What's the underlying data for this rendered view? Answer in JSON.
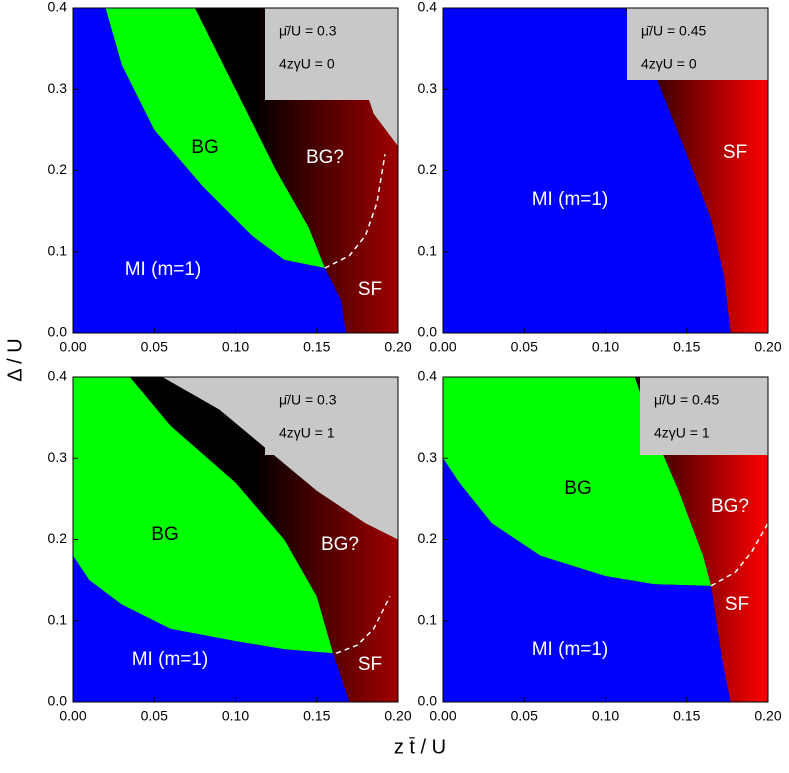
{
  "y_label": "Δ / U",
  "x_label": "z t̄ / U",
  "chart_data": [
    {
      "type": "phase",
      "legend_lines": [
        "μ̄/U = 0.3",
        "4zγU = 0"
      ],
      "labels": [
        "BG",
        "BG?",
        "MI (m=1)",
        "SF"
      ],
      "gradient": [
        "#000000",
        "#a00000"
      ],
      "regions": [
        {
          "color": "#c8c8c8",
          "x": [
            0.165,
            0.165,
            0.175,
            0.185,
            0.2,
            0.2
          ],
          "y": [
            0.4,
            0.37,
            0.33,
            0.27,
            0.23,
            0.4
          ]
        },
        {
          "color": "#00ff00",
          "x": [
            0.02,
            0.075,
            0.1,
            0.125,
            0.145,
            0.155,
            0.13,
            0.11,
            0.08,
            0.05,
            0.03
          ],
          "y": [
            0.4,
            0.4,
            0.3,
            0.2,
            0.13,
            0.08,
            0.09,
            0.12,
            0.18,
            0.25,
            0.33
          ]
        },
        {
          "color": "#0000ff",
          "x": [
            0,
            0,
            0.02,
            0.03,
            0.05,
            0.08,
            0.11,
            0.13,
            0.155,
            0.165,
            0.168
          ],
          "y": [
            0,
            0.4,
            0.4,
            0.33,
            0.25,
            0.18,
            0.12,
            0.09,
            0.08,
            0.04,
            0
          ]
        }
      ],
      "dashed": {
        "x": [
          0.155,
          0.17,
          0.18,
          0.187,
          0.192
        ],
        "y": [
          0.08,
          0.095,
          0.12,
          0.16,
          0.22
        ]
      },
      "xlim": [
        0,
        0.2
      ],
      "ylim": [
        0,
        0.4
      ],
      "xticks": [
        {
          "value": 0,
          "label": "0.00"
        },
        0.05,
        {
          "value": 0.1,
          "label": "0.10"
        },
        0.15,
        {
          "value": 0.2,
          "label": "0.20"
        }
      ],
      "yticks": [
        {
          "value": 0,
          "label": "0.0"
        },
        0.1,
        0.2,
        0.3,
        0.4
      ]
    },
    {
      "type": "phase",
      "legend_lines": [
        "μ̄/U = 0.45",
        "4zγU = 0"
      ],
      "labels": [
        "MI (m=1)",
        "SF"
      ],
      "gradient": [
        "#000000",
        "#ff0000"
      ],
      "regions": [
        {
          "color": "#0000ff",
          "x": [
            0,
            0,
            0.112,
            0.13,
            0.15,
            0.165,
            0.173,
            0.177
          ],
          "y": [
            0,
            0.4,
            0.4,
            0.32,
            0.22,
            0.14,
            0.07,
            0
          ]
        }
      ],
      "xlim": [
        0,
        0.2
      ],
      "ylim": [
        0,
        0.4
      ],
      "xticks": [
        {
          "value": 0,
          "label": "0.00"
        },
        0.05,
        {
          "value": 0.1,
          "label": "0.10"
        },
        0.15,
        {
          "value": 0.2,
          "label": "0.20"
        }
      ],
      "yticks": [
        {
          "value": 0,
          "label": "0.0"
        },
        0.1,
        0.2,
        0.3,
        0.4
      ]
    },
    {
      "type": "phase",
      "legend_lines": [
        "μ̄/U = 0.3",
        "4zγU = 1"
      ],
      "labels": [
        "BG",
        "BG?",
        "MI (m=1)",
        "SF"
      ],
      "gradient": [
        "#000000",
        "#a00000"
      ],
      "regions": [
        {
          "color": "#c8c8c8",
          "x": [
            0.055,
            0.09,
            0.12,
            0.15,
            0.18,
            0.2,
            0.2
          ],
          "y": [
            0.4,
            0.36,
            0.31,
            0.26,
            0.22,
            0.2,
            0.4
          ]
        },
        {
          "color": "#00ff00",
          "x": [
            0,
            0.035,
            0.06,
            0.1,
            0.13,
            0.15,
            0.16,
            0.13,
            0.1,
            0.06,
            0.03,
            0.01,
            0
          ],
          "y": [
            0.4,
            0.4,
            0.34,
            0.27,
            0.2,
            0.13,
            0.06,
            0.065,
            0.075,
            0.09,
            0.12,
            0.15,
            0.18
          ]
        },
        {
          "color": "#0000ff",
          "x": [
            0,
            0,
            0.01,
            0.03,
            0.06,
            0.1,
            0.13,
            0.16,
            0.165,
            0.17
          ],
          "y": [
            0,
            0.18,
            0.15,
            0.12,
            0.09,
            0.075,
            0.065,
            0.06,
            0.03,
            0
          ]
        }
      ],
      "dashed": {
        "x": [
          0.162,
          0.175,
          0.185,
          0.195
        ],
        "y": [
          0.06,
          0.07,
          0.09,
          0.13
        ]
      },
      "xlim": [
        0,
        0.2
      ],
      "ylim": [
        0,
        0.4
      ],
      "xticks": [
        {
          "value": 0,
          "label": "0.00"
        },
        0.05,
        {
          "value": 0.1,
          "label": "0.10"
        },
        0.15,
        {
          "value": 0.2,
          "label": "0.20"
        }
      ],
      "yticks": [
        {
          "value": 0,
          "label": "0.0"
        },
        0.1,
        0.2,
        0.3,
        0.4
      ]
    },
    {
      "type": "phase",
      "legend_lines": [
        "μ̄/U = 0.45",
        "4zγU = 1"
      ],
      "labels": [
        "BG",
        "BG?",
        "MI (m=1)",
        "SF"
      ],
      "gradient": [
        "#000000",
        "#ff0000"
      ],
      "regions": [
        {
          "color": "#00ff00",
          "x": [
            0,
            0,
            0.118,
            0.13,
            0.145,
            0.16,
            0.165,
            0.13,
            0.1,
            0.06,
            0.03,
            0.01
          ],
          "y": [
            0.3,
            0.4,
            0.4,
            0.33,
            0.26,
            0.18,
            0.143,
            0.145,
            0.155,
            0.18,
            0.22,
            0.27
          ]
        },
        {
          "color": "#0000ff",
          "x": [
            0,
            0,
            0.01,
            0.03,
            0.06,
            0.1,
            0.13,
            0.165,
            0.172,
            0.177
          ],
          "y": [
            0,
            0.3,
            0.27,
            0.22,
            0.18,
            0.155,
            0.145,
            0.143,
            0.05,
            0
          ]
        }
      ],
      "dashed": {
        "x": [
          0.165,
          0.18,
          0.19,
          0.2
        ],
        "y": [
          0.143,
          0.16,
          0.185,
          0.22
        ]
      },
      "xlim": [
        0,
        0.2
      ],
      "ylim": [
        0,
        0.4
      ],
      "xticks": [
        {
          "value": 0,
          "label": "0.00"
        },
        0.05,
        {
          "value": 0.1,
          "label": "0.10"
        },
        0.15,
        {
          "value": 0.2,
          "label": "0.20"
        }
      ],
      "yticks": [
        {
          "value": 0,
          "label": "0.0"
        },
        0.1,
        0.2,
        0.3,
        0.4
      ]
    }
  ]
}
